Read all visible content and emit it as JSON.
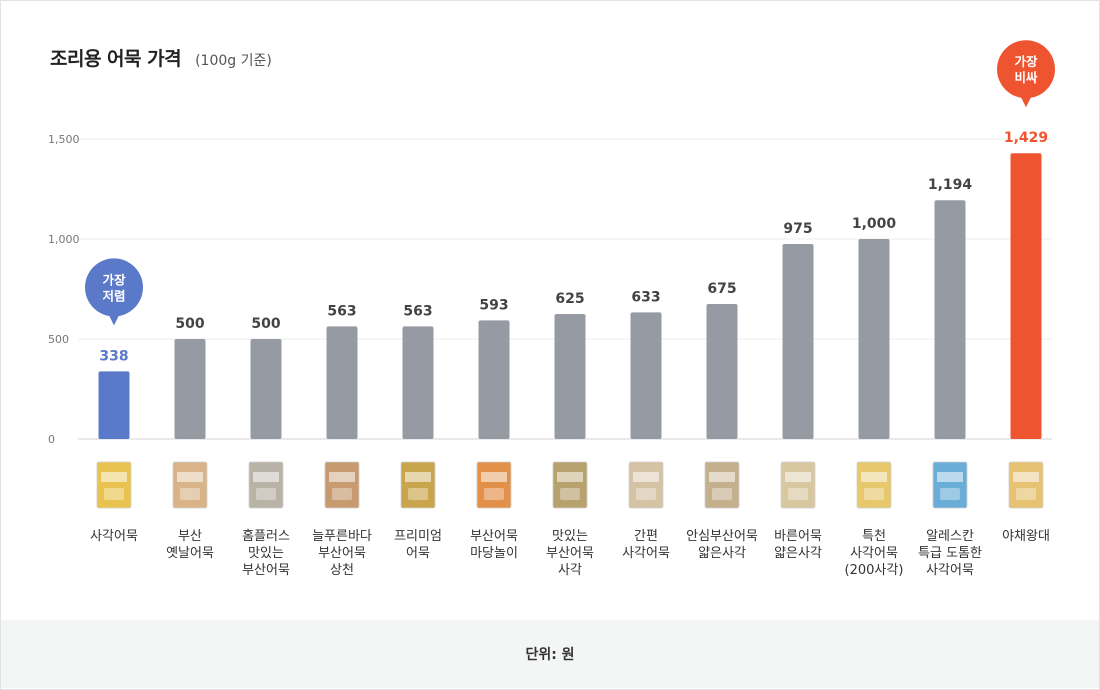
{
  "chart_data": {
    "type": "bar",
    "title": "조리용 어묵 가격",
    "subtitle": "(100g 기준)",
    "categories": [
      [
        "사각어묵"
      ],
      [
        "부산",
        "옛날어묵"
      ],
      [
        "홈플러스",
        "맛있는",
        "부산어묵"
      ],
      [
        "늘푸른바다",
        "부산어묵",
        "상천"
      ],
      [
        "프리미엄",
        "어묵"
      ],
      [
        "부산어묵",
        "마당놀이"
      ],
      [
        "맛있는",
        "부산어묵",
        "사각"
      ],
      [
        "간편",
        "사각어묵"
      ],
      [
        "안심부산어묵",
        "얇은사각"
      ],
      [
        "바른어묵",
        "얇은사각"
      ],
      [
        "특천",
        "사각어묵",
        "(200사각)"
      ],
      [
        "알레스칸",
        "특급 도톰한",
        "사각어묵"
      ],
      [
        "야채왕대"
      ]
    ],
    "values": [
      338,
      500,
      500,
      563,
      563,
      593,
      625,
      633,
      675,
      975,
      1000,
      1194,
      1429
    ],
    "value_labels": [
      "338",
      "500",
      "500",
      "563",
      "563",
      "593",
      "625",
      "633",
      "675",
      "975",
      "1,000",
      "1,194",
      "1,429"
    ],
    "ylim": [
      0,
      1500
    ],
    "yticks": [
      0,
      500,
      1000,
      1500
    ],
    "ytick_labels": [
      "0",
      "500",
      "1,000",
      "1,500"
    ],
    "grid": true,
    "colors": {
      "default": "#969aa3",
      "lowest": "#5b79c9",
      "highest": "#ef5431"
    },
    "annotations": {
      "lowest": {
        "index": 0,
        "text": [
          "가장",
          "저렴"
        ]
      },
      "highest": {
        "index": 12,
        "text": [
          "가장",
          "비싸"
        ]
      }
    }
  },
  "product_image_colors": [
    "#e9c350",
    "#d8b488",
    "#b9b2a6",
    "#c79a6f",
    "#c9a54d",
    "#e2904a",
    "#b7a16c",
    "#d6c2a5",
    "#c5b08e",
    "#d9c7a0",
    "#e7c86c",
    "#6aaed8",
    "#e6c273"
  ],
  "footer": {
    "unit": "단위: 원"
  }
}
